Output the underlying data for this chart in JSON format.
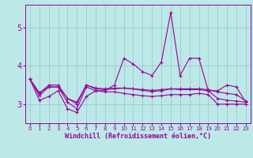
{
  "xlabel": "Windchill (Refroidissement éolien,°C)",
  "background_color": "#bde8e8",
  "grid_color": "#99cccc",
  "line_color": "#990099",
  "xlim": [
    -0.5,
    23.5
  ],
  "ylim": [
    2.5,
    5.6
  ],
  "yticks": [
    3,
    4,
    5
  ],
  "xticks": [
    0,
    1,
    2,
    3,
    4,
    5,
    6,
    7,
    8,
    9,
    10,
    11,
    12,
    13,
    14,
    15,
    16,
    17,
    18,
    19,
    20,
    21,
    22,
    23
  ],
  "series": [
    [
      3.65,
      3.1,
      3.2,
      3.35,
      2.88,
      2.78,
      3.2,
      3.35,
      3.35,
      3.5,
      4.2,
      4.05,
      3.85,
      3.75,
      4.1,
      5.4,
      3.75,
      4.2,
      4.2,
      3.35,
      3.35,
      3.5,
      3.45,
      3.05
    ],
    [
      3.65,
      3.3,
      3.45,
      3.45,
      3.15,
      3.05,
      3.5,
      3.4,
      3.38,
      3.4,
      3.42,
      3.4,
      3.36,
      3.33,
      3.35,
      3.4,
      3.38,
      3.38,
      3.38,
      3.35,
      3.15,
      3.1,
      3.08,
      3.05
    ],
    [
      3.65,
      3.28,
      3.5,
      3.5,
      3.15,
      3.0,
      3.5,
      3.42,
      3.4,
      3.42,
      3.42,
      3.4,
      3.38,
      3.36,
      3.38,
      3.4,
      3.4,
      3.4,
      3.4,
      3.38,
      3.32,
      3.28,
      3.25,
      3.08
    ],
    [
      3.65,
      3.22,
      3.45,
      3.45,
      3.05,
      2.88,
      3.45,
      3.35,
      3.32,
      3.32,
      3.28,
      3.25,
      3.22,
      3.2,
      3.22,
      3.25,
      3.25,
      3.25,
      3.28,
      3.25,
      3.0,
      3.0,
      3.0,
      3.0
    ]
  ]
}
